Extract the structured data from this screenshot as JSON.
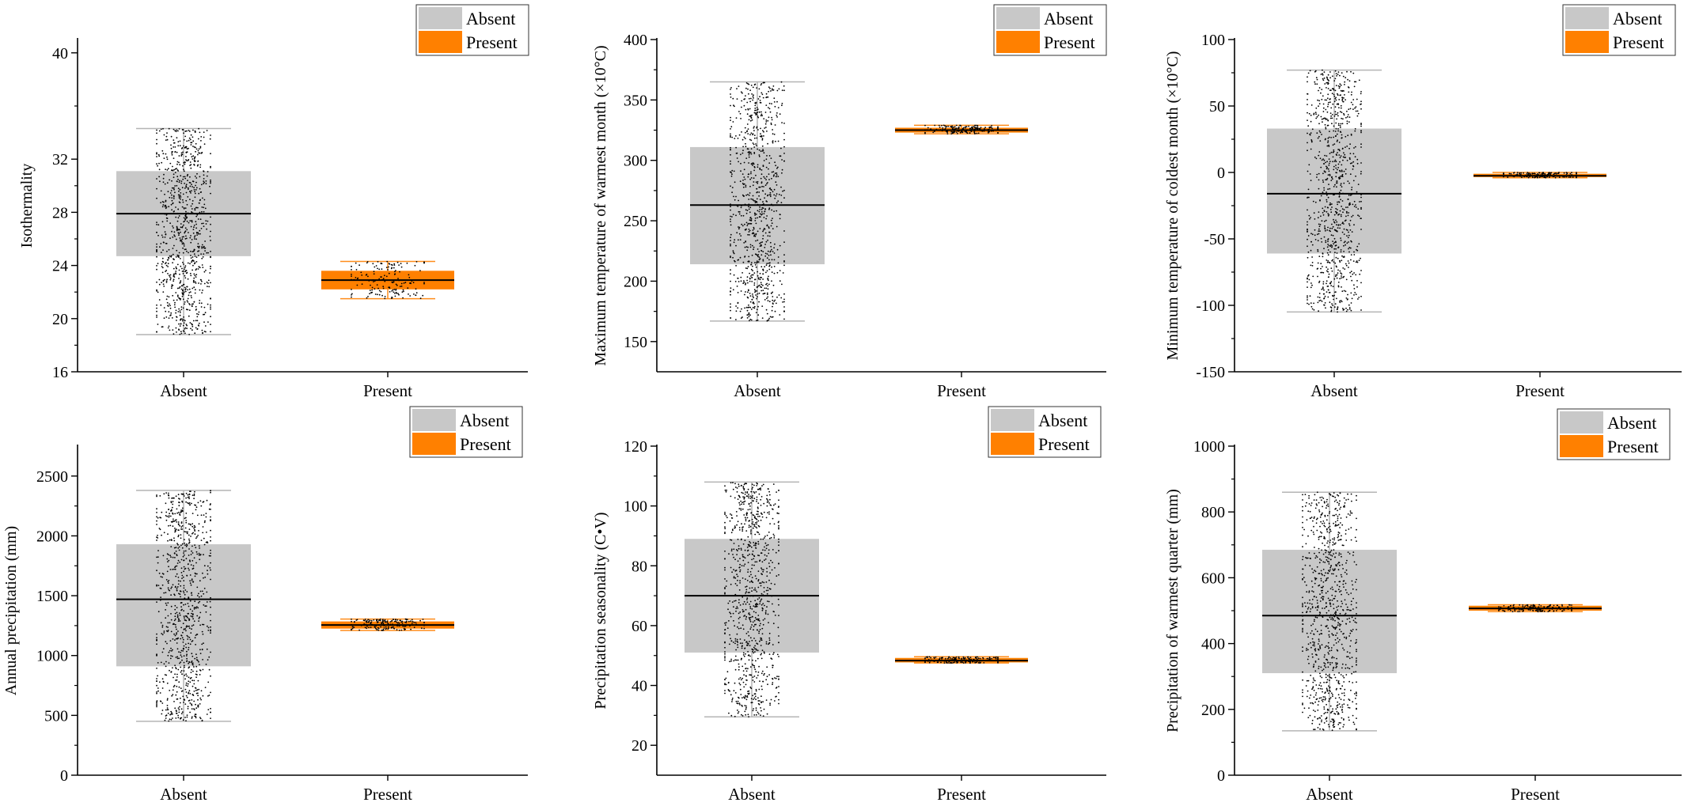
{
  "colors": {
    "absent_box": "#c8c8c8",
    "absent_whisker": "#b4b4b4",
    "present_box": "#ff8000",
    "present_whisker": "#ff8c1a",
    "median": "#000000",
    "points": "#000000",
    "axis": "#000000"
  },
  "chart_data": [
    {
      "type": "box",
      "ylabel": "Isothermality",
      "ylim": [
        16,
        41
      ],
      "yticks": [
        16,
        20,
        24,
        28,
        32,
        40
      ],
      "categories": [
        "Absent",
        "Present"
      ],
      "legend": [
        "Absent",
        "Present"
      ],
      "legend_position": "top-right",
      "boxes": [
        {
          "name": "Absent",
          "whisker_low": 18.8,
          "q1": 24.7,
          "median": 27.9,
          "q3": 31.1,
          "whisker_high": 34.3,
          "points_low": 18.8,
          "points_high": 34.3
        },
        {
          "name": "Present",
          "whisker_low": 21.5,
          "q1": 22.2,
          "median": 22.9,
          "q3": 23.6,
          "whisker_high": 24.3,
          "points_low": 21.5,
          "points_high": 24.3
        }
      ]
    },
    {
      "type": "box",
      "ylabel": "Maximum temperature of warmest month (×10°C)",
      "ylim": [
        125,
        400
      ],
      "yticks": [
        150,
        200,
        250,
        300,
        350,
        400
      ],
      "categories": [
        "Absent",
        "Present"
      ],
      "legend": [
        "Absent",
        "Present"
      ],
      "legend_position": "top-right",
      "boxes": [
        {
          "name": "Absent",
          "whisker_low": 167,
          "q1": 214,
          "median": 263,
          "q3": 311,
          "whisker_high": 365,
          "points_low": 167,
          "points_high": 365
        },
        {
          "name": "Present",
          "whisker_low": 322,
          "q1": 323,
          "median": 325,
          "q3": 327,
          "whisker_high": 329,
          "points_low": 322,
          "points_high": 329
        }
      ]
    },
    {
      "type": "box",
      "ylabel": "Minimum temperature of coldest month (×10°C)",
      "ylim": [
        -150,
        100
      ],
      "yticks": [
        -150,
        -100,
        -50,
        0,
        50,
        100
      ],
      "categories": [
        "Absent",
        "Present"
      ],
      "legend": [
        "Absent",
        "Present"
      ],
      "legend_position": "top-right",
      "boxes": [
        {
          "name": "Absent",
          "whisker_low": -105,
          "q1": -61,
          "median": -16,
          "q3": 33,
          "whisker_high": 77,
          "points_low": -105,
          "points_high": 77
        },
        {
          "name": "Present",
          "whisker_low": -4,
          "q1": -3.5,
          "median": -2.5,
          "q3": -1,
          "whisker_high": 0,
          "points_low": -4,
          "points_high": 0
        }
      ]
    },
    {
      "type": "box",
      "ylabel": "Annual precipitation (mm)",
      "ylim": [
        0,
        2750
      ],
      "yticks": [
        0,
        500,
        1000,
        1500,
        2000,
        2500
      ],
      "categories": [
        "Absent",
        "Present"
      ],
      "legend": [
        "Absent",
        "Present"
      ],
      "legend_position": "top-right",
      "boxes": [
        {
          "name": "Absent",
          "whisker_low": 450,
          "q1": 910,
          "median": 1470,
          "q3": 1930,
          "whisker_high": 2380,
          "points_low": 450,
          "points_high": 2380
        },
        {
          "name": "Present",
          "whisker_low": 1210,
          "q1": 1225,
          "median": 1255,
          "q3": 1285,
          "whisker_high": 1305,
          "points_low": 1210,
          "points_high": 1305
        }
      ]
    },
    {
      "type": "box",
      "ylabel": "Precipitation seasonality (C•V)",
      "ylim": [
        10,
        120
      ],
      "yticks": [
        20,
        40,
        60,
        80,
        100,
        120
      ],
      "categories": [
        "Absent",
        "Present"
      ],
      "legend": [
        "Absent",
        "Present"
      ],
      "legend_position": "top-right",
      "boxes": [
        {
          "name": "Absent",
          "whisker_low": 29.5,
          "q1": 51,
          "median": 70,
          "q3": 89,
          "whisker_high": 108,
          "points_low": 29.5,
          "points_high": 108
        },
        {
          "name": "Present",
          "whisker_low": 47.5,
          "q1": 47.7,
          "median": 48.3,
          "q3": 49.2,
          "whisker_high": 49.6,
          "points_low": 47.5,
          "points_high": 49.6
        }
      ]
    },
    {
      "type": "box",
      "ylabel": "Precipitation of warmest quarter (mm)",
      "ylim": [
        0,
        1000
      ],
      "yticks": [
        0,
        200,
        400,
        600,
        800,
        1000
      ],
      "categories": [
        "Absent",
        "Present"
      ],
      "legend": [
        "Absent",
        "Present"
      ],
      "legend_position": "top-right",
      "boxes": [
        {
          "name": "Absent",
          "whisker_low": 135,
          "q1": 310,
          "median": 485,
          "q3": 685,
          "whisker_high": 860,
          "points_low": 135,
          "points_high": 860
        },
        {
          "name": "Present",
          "whisker_low": 497,
          "q1": 500,
          "median": 507,
          "q3": 515,
          "whisker_high": 518,
          "points_low": 497,
          "points_high": 518
        }
      ]
    }
  ]
}
